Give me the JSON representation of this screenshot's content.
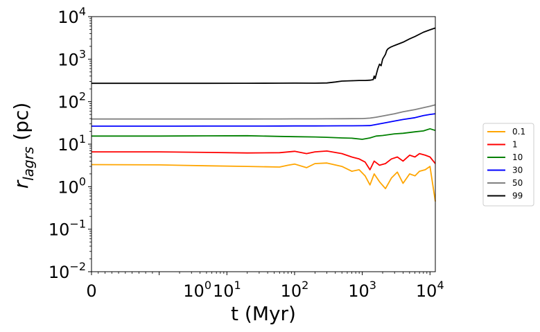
{
  "chart_data": {
    "type": "line",
    "xlabel": "t (Myr)",
    "ylabel": "r_lagrs (pc)",
    "x_scale": "symlog",
    "y_scale": "log",
    "xlim": [
      0,
      12000
    ],
    "ylim": [
      0.01,
      10000
    ],
    "x_tick_labels": [
      "0",
      "10^0",
      "10^1",
      "10^2",
      "10^3",
      "10^4"
    ],
    "y_tick_labels": [
      "10^-2",
      "10^-1",
      "10^0",
      "10^1",
      "10^2",
      "10^3",
      "10^4"
    ],
    "legend_position": "right",
    "series": [
      {
        "name": "0.1",
        "color": "#ffa500",
        "points": [
          [
            0,
            3.3
          ],
          [
            1,
            3.25
          ],
          [
            5,
            3.1
          ],
          [
            20,
            3.0
          ],
          [
            60,
            2.9
          ],
          [
            80,
            3.2
          ],
          [
            100,
            3.4
          ],
          [
            150,
            2.8
          ],
          [
            200,
            3.5
          ],
          [
            300,
            3.6
          ],
          [
            500,
            3.0
          ],
          [
            700,
            2.3
          ],
          [
            900,
            2.5
          ],
          [
            1100,
            1.8
          ],
          [
            1300,
            1.1
          ],
          [
            1500,
            2.0
          ],
          [
            1800,
            1.3
          ],
          [
            2200,
            0.9
          ],
          [
            2700,
            1.6
          ],
          [
            3300,
            2.2
          ],
          [
            4000,
            1.2
          ],
          [
            5000,
            2.0
          ],
          [
            6000,
            1.8
          ],
          [
            7000,
            2.3
          ],
          [
            8500,
            2.5
          ],
          [
            10000,
            3.0
          ],
          [
            12000,
            0.45
          ]
        ]
      },
      {
        "name": "1",
        "color": "#ff0000",
        "points": [
          [
            0,
            6.6
          ],
          [
            1,
            6.6
          ],
          [
            5,
            6.4
          ],
          [
            20,
            6.2
          ],
          [
            60,
            6.3
          ],
          [
            100,
            6.8
          ],
          [
            150,
            6.0
          ],
          [
            200,
            6.6
          ],
          [
            300,
            6.9
          ],
          [
            500,
            6.0
          ],
          [
            700,
            5.0
          ],
          [
            900,
            4.5
          ],
          [
            1100,
            3.8
          ],
          [
            1300,
            2.5
          ],
          [
            1500,
            4.0
          ],
          [
            1800,
            3.2
          ],
          [
            2200,
            3.5
          ],
          [
            2700,
            4.5
          ],
          [
            3300,
            5.0
          ],
          [
            4000,
            4.0
          ],
          [
            5000,
            5.5
          ],
          [
            6000,
            5.0
          ],
          [
            7000,
            6.0
          ],
          [
            8500,
            5.5
          ],
          [
            10000,
            5.0
          ],
          [
            12000,
            3.5
          ]
        ]
      },
      {
        "name": "10",
        "color": "#008000",
        "points": [
          [
            0,
            15.5
          ],
          [
            1,
            15.5
          ],
          [
            5,
            15.7
          ],
          [
            20,
            15.8
          ],
          [
            60,
            15.2
          ],
          [
            100,
            15.0
          ],
          [
            200,
            14.8
          ],
          [
            300,
            14.5
          ],
          [
            500,
            14.0
          ],
          [
            700,
            13.8
          ],
          [
            1000,
            13.0
          ],
          [
            1300,
            14.0
          ],
          [
            1600,
            15.5
          ],
          [
            2000,
            16.0
          ],
          [
            3000,
            17.5
          ],
          [
            4000,
            18.0
          ],
          [
            6000,
            19.5
          ],
          [
            8000,
            20.5
          ],
          [
            10000,
            23.0
          ],
          [
            12000,
            21.0
          ]
        ]
      },
      {
        "name": "30",
        "color": "#0000ff",
        "points": [
          [
            0,
            26.5
          ],
          [
            1,
            26.5
          ],
          [
            5,
            26.6
          ],
          [
            20,
            26.6
          ],
          [
            60,
            26.7
          ],
          [
            100,
            26.8
          ],
          [
            200,
            26.8
          ],
          [
            300,
            26.9
          ],
          [
            500,
            27.0
          ],
          [
            700,
            27.0
          ],
          [
            1000,
            27.1
          ],
          [
            1300,
            27.4
          ],
          [
            1600,
            29.0
          ],
          [
            2000,
            31.0
          ],
          [
            3000,
            35.0
          ],
          [
            4000,
            38.0
          ],
          [
            6000,
            42.0
          ],
          [
            8000,
            47.0
          ],
          [
            10000,
            50.0
          ],
          [
            12000,
            52.0
          ]
        ]
      },
      {
        "name": "50",
        "color": "#808080",
        "points": [
          [
            0,
            39.0
          ],
          [
            1,
            39.0
          ],
          [
            5,
            39.1
          ],
          [
            20,
            39.1
          ],
          [
            60,
            39.2
          ],
          [
            100,
            39.3
          ],
          [
            200,
            39.4
          ],
          [
            300,
            39.5
          ],
          [
            500,
            39.7
          ],
          [
            700,
            39.8
          ],
          [
            1000,
            40.0
          ],
          [
            1300,
            41.0
          ],
          [
            1600,
            43.0
          ],
          [
            2000,
            46.0
          ],
          [
            3000,
            52.0
          ],
          [
            4000,
            58.0
          ],
          [
            6000,
            65.0
          ],
          [
            8000,
            72.0
          ],
          [
            10000,
            78.0
          ],
          [
            12000,
            84.0
          ]
        ]
      },
      {
        "name": "99",
        "color": "#000000",
        "points": [
          [
            0,
            270
          ],
          [
            1,
            270
          ],
          [
            5,
            270
          ],
          [
            20,
            271
          ],
          [
            60,
            272
          ],
          [
            100,
            273
          ],
          [
            200,
            272
          ],
          [
            300,
            275
          ],
          [
            400,
            290
          ],
          [
            500,
            305
          ],
          [
            700,
            310
          ],
          [
            900,
            315
          ],
          [
            1100,
            315
          ],
          [
            1300,
            320
          ],
          [
            1450,
            330
          ],
          [
            1500,
            400
          ],
          [
            1550,
            350
          ],
          [
            1700,
            600
          ],
          [
            1800,
            760
          ],
          [
            1900,
            700
          ],
          [
            2000,
            1000
          ],
          [
            2200,
            1300
          ],
          [
            2300,
            1600
          ],
          [
            2400,
            1750
          ],
          [
            2600,
            1900
          ],
          [
            3000,
            2100
          ],
          [
            4000,
            2500
          ],
          [
            5000,
            3000
          ],
          [
            6000,
            3400
          ],
          [
            8000,
            4300
          ],
          [
            10000,
            4900
          ],
          [
            12000,
            5400
          ]
        ]
      }
    ]
  }
}
